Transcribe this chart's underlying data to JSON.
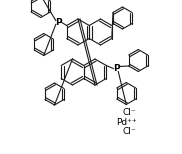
{
  "bg_color": "#ffffff",
  "line_color": "#1a1a1a",
  "text_color": "#000000",
  "figsize": [
    1.82,
    1.54
  ],
  "dpi": 100,
  "P_left": {
    "text": "P",
    "fontsize": 6.5
  },
  "P_right": {
    "text": "P",
    "fontsize": 6.5
  },
  "cl1": {
    "text": "Cl⁻",
    "fontsize": 6.5
  },
  "pd": {
    "text": "Pd⁺⁺",
    "fontsize": 6.5
  },
  "cl2": {
    "text": "Cl⁻",
    "fontsize": 6.5
  }
}
